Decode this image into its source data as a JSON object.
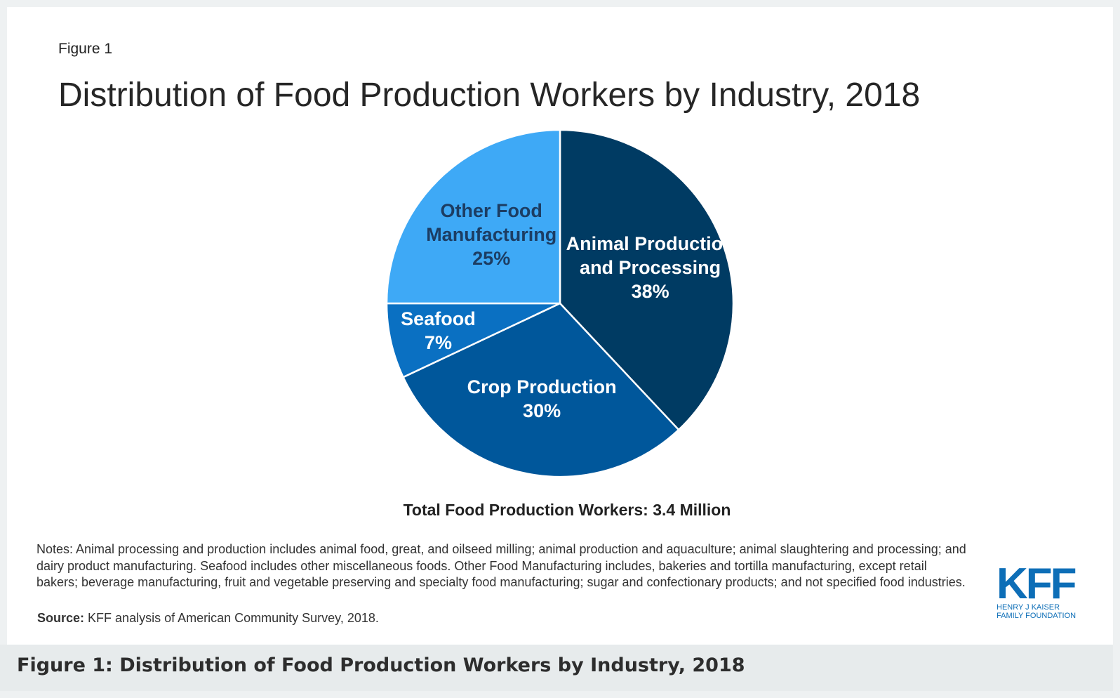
{
  "figure_label": "Figure 1",
  "chart_data": {
    "type": "pie",
    "title": "Distribution of Food Production Workers by Industry, 2018",
    "categories": [
      "Animal Production and Processing",
      "Crop Production",
      "Seafood",
      "Other Food Manufacturing"
    ],
    "values": [
      38,
      30,
      7,
      25
    ],
    "value_labels": [
      "38%",
      "30%",
      "7%",
      "25%"
    ],
    "colors": [
      "#003b63",
      "#00579b",
      "#0a70c2",
      "#3ea9f6"
    ],
    "total_note": "Total Food Production Workers: 3.4 Million"
  },
  "notes": "Notes: Animal processing and production includes animal food, great, and oilseed milling; animal production and aquaculture; animal slaughtering and processing; and dairy product manufacturing. Seafood includes other miscellaneous foods. Other Food Manufacturing includes, bakeries and tortilla manufacturing, except retail bakers; beverage manufacturing, fruit and vegetable preserving and specialty food manufacturing; sugar and confectionary products; and not specified food industries.",
  "source_label": "Source:",
  "source_text": "KFF analysis of American Community Survey, 2018.",
  "logo": {
    "text": "KFF",
    "line1": "HENRY J KAISER",
    "line2": "FAMILY FOUNDATION"
  },
  "caption": "Figure 1: Distribution of Food Production Workers by Industry, 2018"
}
